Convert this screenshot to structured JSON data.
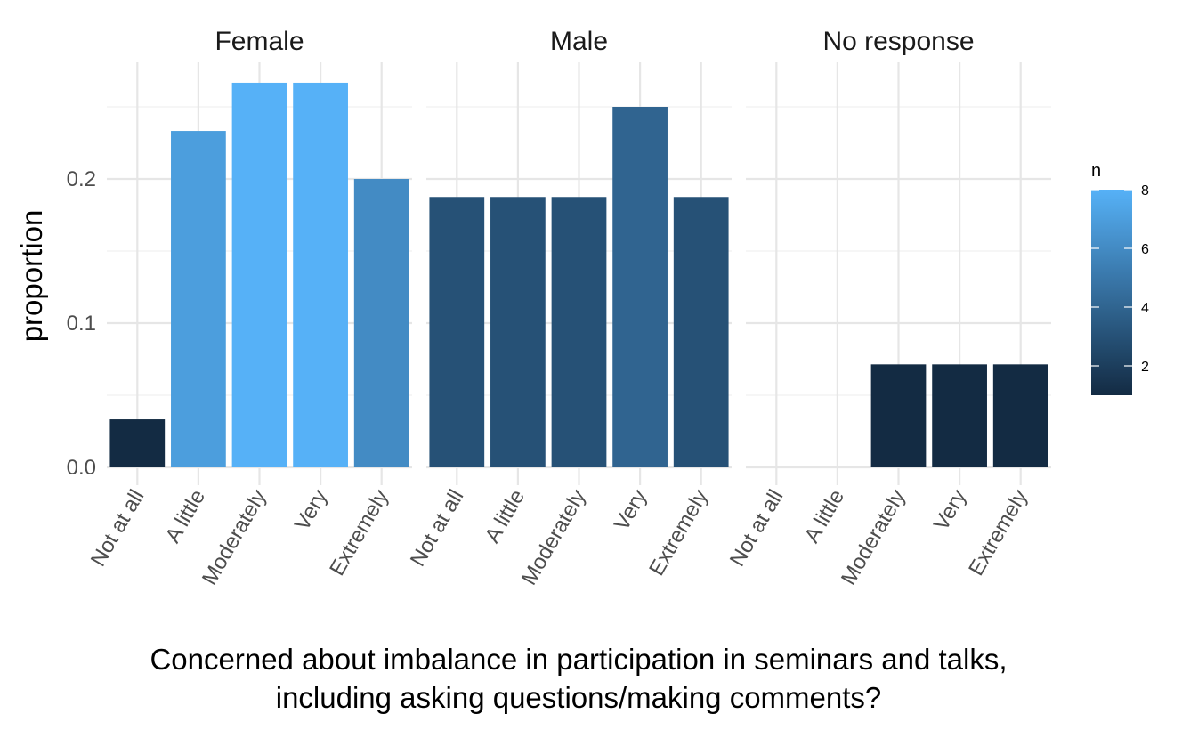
{
  "chart_data": {
    "type": "bar",
    "categories": [
      "Not at all",
      "A little",
      "Moderately",
      "Very",
      "Extremely"
    ],
    "panels": [
      {
        "name": "Female",
        "values": [
          0.0333,
          0.2333,
          0.2667,
          0.2667,
          0.2
        ],
        "n": [
          1,
          7,
          8,
          8,
          6
        ]
      },
      {
        "name": "Male",
        "values": [
          0.1875,
          0.1875,
          0.1875,
          0.25,
          0.1875
        ],
        "n": [
          3,
          3,
          3,
          4,
          3
        ]
      },
      {
        "name": "No response",
        "values": [
          0,
          0,
          0.0714,
          0.0714,
          0.0714
        ],
        "n": [
          0,
          0,
          1,
          1,
          1
        ]
      }
    ],
    "ylabel": "proportion",
    "xlabel_lines": [
      "Concerned about imbalance in participation in seminars and talks,",
      "including asking questions/making comments?"
    ],
    "ylim": [
      0,
      0.27
    ],
    "yticks": [
      0.0,
      0.1,
      0.2
    ],
    "ytick_labels": [
      "0.0",
      "0.1",
      "0.2"
    ],
    "legend": {
      "title": "n",
      "ticks": [
        2,
        4,
        6,
        8
      ],
      "range": [
        1,
        8
      ],
      "low_color": "#132B43",
      "high_color": "#56B1F7",
      "position": "right"
    },
    "grid": true
  }
}
